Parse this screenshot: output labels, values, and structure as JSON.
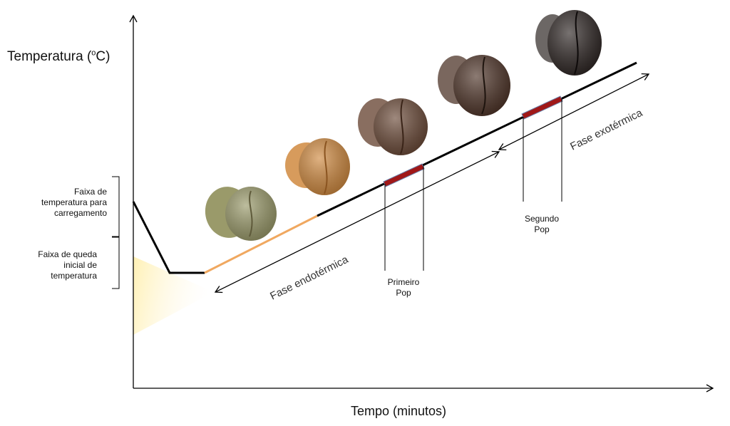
{
  "axes": {
    "y_label_prefix": "Temperatura (",
    "y_label_sup": "o",
    "y_label_suffix": "C)",
    "x_label": "Tempo (minutos)"
  },
  "brackets": {
    "loading": "Faixa de\ntemperatura para\ncarregamento",
    "drop": "Faixa de queda\ninicial de\ntemperatura"
  },
  "phases": {
    "endothermic": "Fase endotérmica",
    "exothermic": "Fase exotérmica"
  },
  "pops": {
    "first": "Primeiro\nPop",
    "second": "Segundo\nPop"
  },
  "colors": {
    "line": "#000000",
    "early_line": "#f0a860",
    "pop_band": "#a01818",
    "glow": "#fff3c0",
    "beans": [
      "#9a9a6a",
      "#d08a40",
      "#6b4a38",
      "#4e3428",
      "#2e2624"
    ]
  }
}
